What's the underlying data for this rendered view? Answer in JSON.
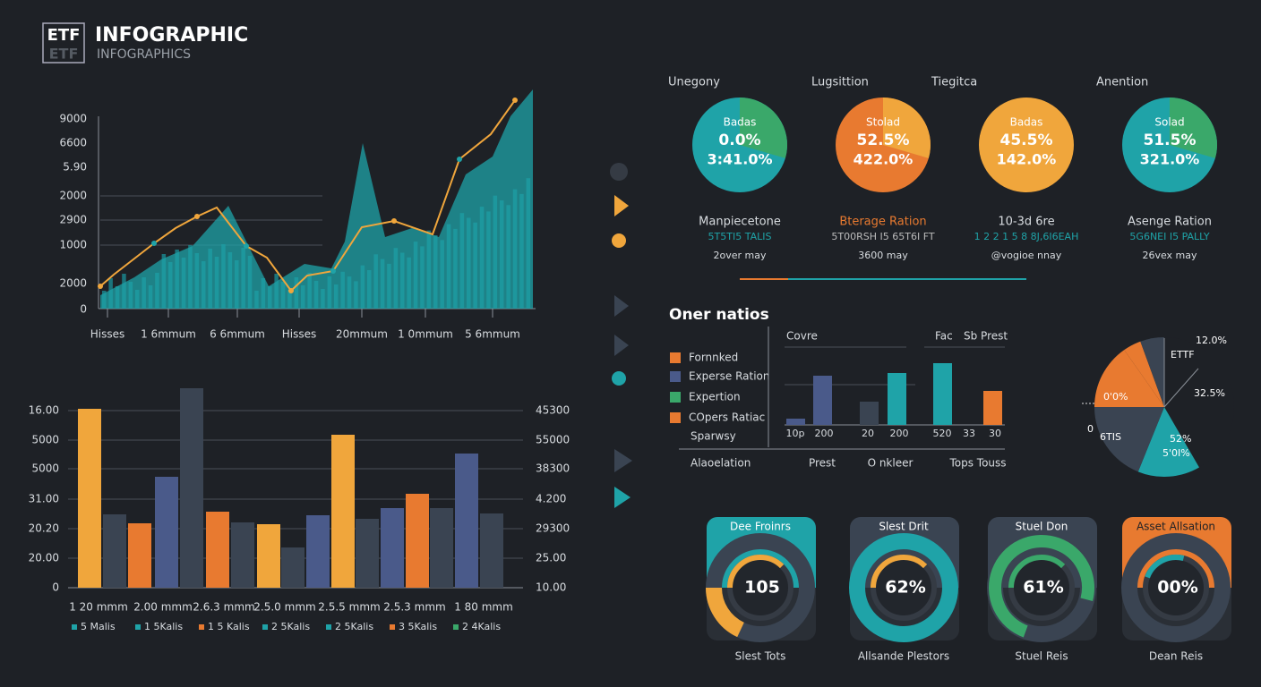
{
  "header": {
    "logo": "ETF",
    "logo_shadow": "ETF",
    "title": "INFOGRAPHIC",
    "subtitle": "INFOGRAPHICS"
  },
  "area_panel": {
    "y_labels": [
      "9000",
      "6600",
      "5.90",
      "2000",
      "2900",
      "1000",
      "2000",
      "0"
    ],
    "x_labels": [
      "Hisses",
      "1 6mmum",
      "6 6mmum",
      "Hisses",
      "20mmum",
      "1 0mmum",
      "5 6mmum"
    ]
  },
  "bar_panel": {
    "left_labels": [
      "16.00",
      "5000",
      "5000",
      "31.00",
      "20.20",
      "20.00",
      "0"
    ],
    "right_labels": [
      "45300",
      "55000",
      "38300",
      "4.200",
      "29300",
      "25.00",
      "10.00"
    ],
    "x_labels": [
      "1 20 mmm",
      "2.00 mmm",
      "2.6.3 mmm",
      "2.5.0 mmm",
      "2.5.5 mmm",
      "2.5.3 mmm",
      "1 80 mmm"
    ],
    "legend": [
      "5 Malis",
      "1 5Kalis",
      "1 5 Kalis",
      "2 5Kalis",
      "2 5Kalis",
      "3 5Kalis",
      "2 4Kalis"
    ]
  },
  "pies": [
    {
      "title": "Unegony",
      "name": "Badas",
      "value": "0.0%",
      "sub": "3:41.0%",
      "caption": "Manpiecetone",
      "code": "5T5TI5 TALIS",
      "note": "2over may"
    },
    {
      "title": "Lugsittion",
      "name": "Stolad",
      "value": "52.5%",
      "sub": "422.0%",
      "caption": "Bterage Ration",
      "code": "5T00RSH I5 65T6I FT",
      "note": "3600 may"
    },
    {
      "title": "Tiegitca",
      "name": "Badas",
      "value": "45.5%",
      "sub": "142.0%",
      "caption": "10-3d 6re",
      "code": "1 2 2 1 5 8 8J,6I6EAH",
      "note": "@vogioe nnay"
    },
    {
      "title": "Anention",
      "name": "Solad",
      "value": "51.5%",
      "sub": "321.0%",
      "caption": "Asenge Ration",
      "code": "5G6NEI I5 PALLY",
      "note": "26vex may"
    }
  ],
  "ratios": {
    "title": "Oner natios",
    "legend": [
      "Fornnked",
      "Experse Ration",
      "Expertion",
      "COpers Ratiac",
      "Sparwsy"
    ],
    "headers": [
      "Covre",
      "Fac",
      "Sb Prest"
    ],
    "bar_labels": [
      "10p",
      "200",
      "20",
      "200",
      "520",
      "33",
      "30"
    ],
    "footer": [
      "Alaoelation",
      "Prest",
      "O nkleer",
      "Tops Touss"
    ]
  },
  "side_pie": {
    "labels": [
      "12.0%",
      "ETTF",
      "32.5%",
      "0'0%",
      "0",
      "6TIS",
      "52%",
      "5'0I%"
    ]
  },
  "gauges": [
    {
      "title": "Dee Froinrs",
      "value": "105",
      "caption": "Slest Tots"
    },
    {
      "title": "Slest Drit",
      "value": "62%",
      "caption": "Allsande Plestors"
    },
    {
      "title": "Stuel Don",
      "value": "61%",
      "caption": "Stuel Reis"
    },
    {
      "title": "Asset Allsation",
      "value": "00%",
      "caption": "Dean Reis"
    }
  ]
}
